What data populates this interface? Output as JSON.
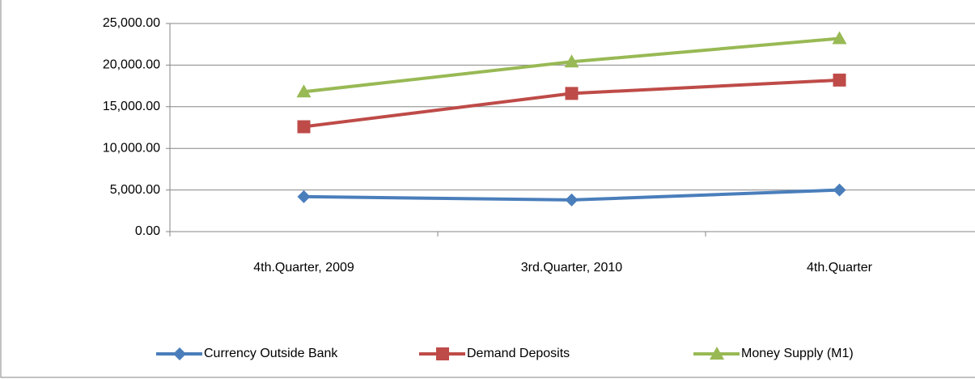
{
  "chart_data": {
    "type": "line",
    "categories": [
      "4th.Quarter, 2009",
      "3rd.Quarter, 2010",
      "4th.Quarter"
    ],
    "series": [
      {
        "name": "Currency Outside Bank",
        "color": "#4a7ebb",
        "marker": "diamond",
        "values": [
          4200,
          3800,
          5000
        ]
      },
      {
        "name": "Demand Deposits",
        "color": "#be4b48",
        "marker": "square",
        "values": [
          12600,
          16600,
          18200
        ]
      },
      {
        "name": "Money Supply (M1)",
        "color": "#98b954",
        "marker": "triangle",
        "values": [
          16800,
          20400,
          23200
        ]
      }
    ],
    "ylim": [
      0,
      25000
    ],
    "yticks": [
      {
        "value": 0,
        "label": "0.00"
      },
      {
        "value": 5000,
        "label": "5,000.00"
      },
      {
        "value": 10000,
        "label": "10,000.00"
      },
      {
        "value": 15000,
        "label": "15,000.00"
      },
      {
        "value": 20000,
        "label": "20,000.00"
      },
      {
        "value": 25000,
        "label": "25,000.00"
      }
    ],
    "grid": true,
    "legend": "bottom"
  }
}
